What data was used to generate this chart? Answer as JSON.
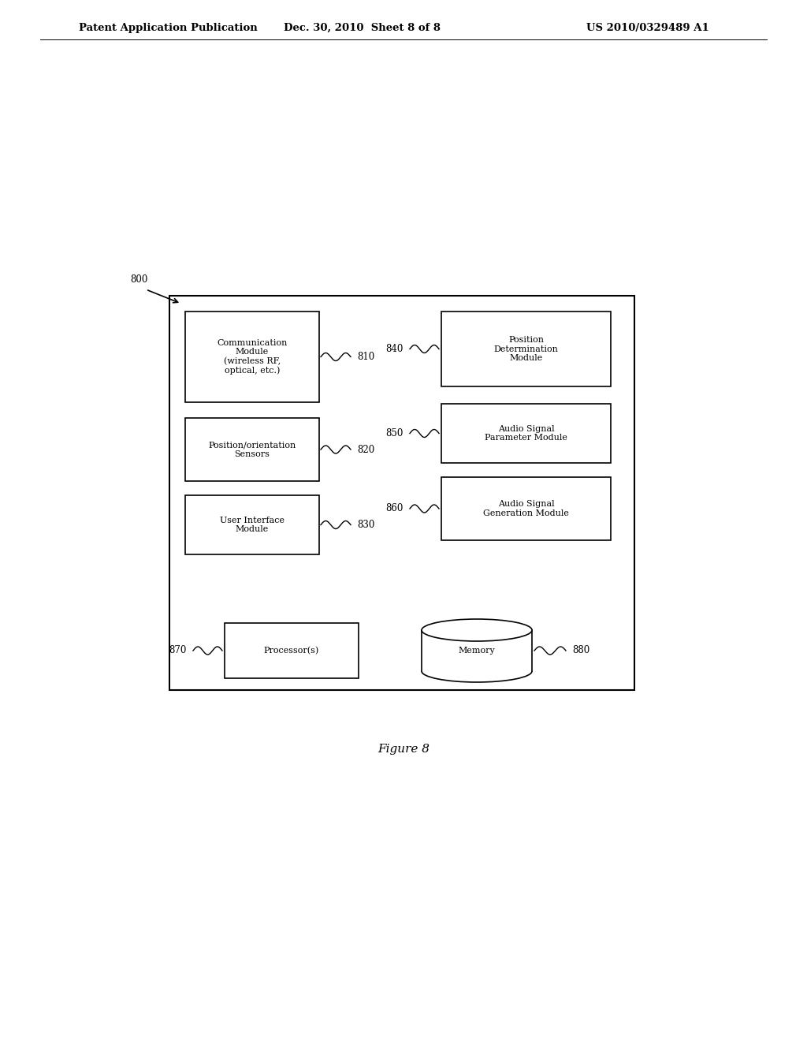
{
  "header_left": "Patent Application Publication",
  "header_mid": "Dec. 30, 2010  Sheet 8 of 8",
  "header_right": "US 2010/0329489 A1",
  "figure_label": "Figure 8",
  "system_label": "800",
  "background_color": "#ffffff",
  "text_color": "#000000",
  "font_size_header": 9.5,
  "font_size_label": 8.5,
  "font_size_number": 8.5,
  "font_size_figure": 11
}
